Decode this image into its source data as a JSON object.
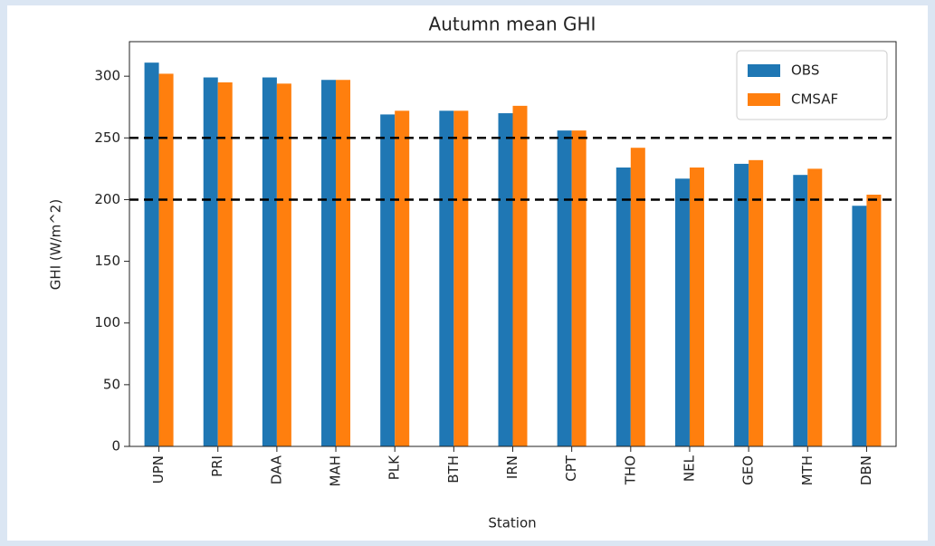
{
  "chart_data": {
    "type": "bar",
    "title": "Autumn mean GHI",
    "x_label": "Station",
    "y_label": "GHI (W/m^2)",
    "categories": [
      "UPN",
      "PRI",
      "DAA",
      "MAH",
      "PLK",
      "BTH",
      "IRN",
      "CPT",
      "THO",
      "NEL",
      "GEO",
      "MTH",
      "DBN"
    ],
    "series": [
      {
        "name": "OBS",
        "color": "#1f77b4",
        "values": [
          311,
          299,
          299,
          297,
          269,
          272,
          270,
          256,
          226,
          217,
          229,
          220,
          195
        ]
      },
      {
        "name": "CMSAF",
        "color": "#ff7f0e",
        "values": [
          302,
          295,
          294,
          297,
          272,
          272,
          276,
          256,
          242,
          226,
          232,
          225,
          204
        ]
      }
    ],
    "hlines": [
      250,
      200
    ],
    "ylim": [
      0,
      328
    ],
    "yticks": [
      0,
      50,
      100,
      150,
      200,
      250,
      300
    ],
    "legend": "upper right"
  }
}
